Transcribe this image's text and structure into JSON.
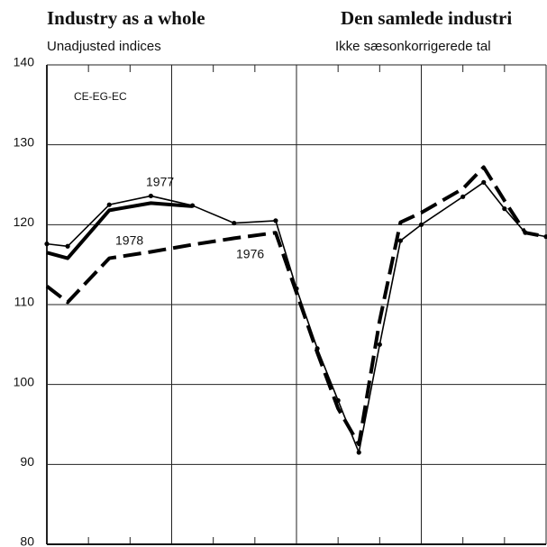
{
  "chart_data": {
    "type": "line",
    "title": "Industry as a whole",
    "subtitle": "Unadjusted indices",
    "title_right": "Den samlede industri",
    "subtitle_right": "Ikke sæsonkorrigerede tal",
    "annotation": "CE-EG-EC",
    "x": [
      0,
      0.5,
      1.5,
      2.5,
      3.5,
      4.5,
      5.5,
      6,
      6.5,
      7,
      7.5,
      8,
      8.5,
      9,
      10,
      10.5,
      11,
      11.5,
      12
    ],
    "xlim": [
      0,
      12
    ],
    "xticks": [
      0,
      3,
      6,
      9,
      12
    ],
    "ylim": [
      80,
      140
    ],
    "yticks": [
      80,
      90,
      100,
      110,
      120,
      130,
      140
    ],
    "grid": true,
    "series": [
      {
        "name": "1976",
        "color": "#000000",
        "style": "dashed",
        "values": [
          112.3,
          110.3,
          115.8,
          116.6,
          117.5,
          118.3,
          119.0,
          111.5,
          104,
          97,
          92.5,
          108,
          120.3,
          121.5,
          124.5,
          127.2,
          123,
          119,
          118.5
        ]
      },
      {
        "name": "1977",
        "color": "#000000",
        "style": "dotted",
        "values": [
          117.6,
          117.3,
          122.5,
          123.6,
          122.4,
          120.2,
          120.5,
          112,
          104.5,
          98,
          91.5,
          105,
          118,
          120,
          123.5,
          125.3,
          122,
          119,
          118.5
        ]
      },
      {
        "name": "1978",
        "color": "#000000",
        "style": "solid",
        "values": [
          116.5,
          115.8,
          121.8,
          122.7,
          122.3,
          null,
          null,
          null,
          null,
          null,
          null,
          null,
          null,
          null,
          null,
          null,
          null,
          null,
          null
        ]
      }
    ]
  }
}
